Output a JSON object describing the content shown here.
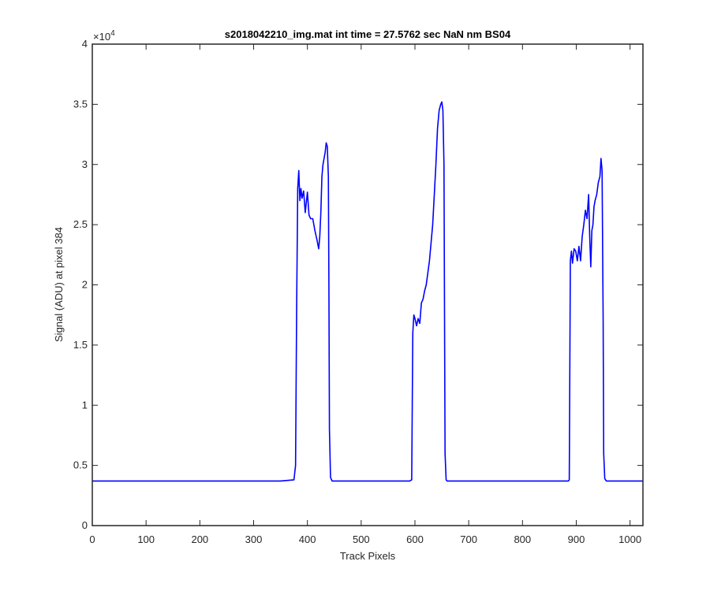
{
  "chart_data": {
    "type": "line",
    "title": "s2018042210_img.mat int time = 27.5762 sec  NaN nm BS04",
    "xlabel": "Track Pixels",
    "ylabel": "Signal (ADU) at pixel 384",
    "y_exponent": {
      "base": "×10",
      "power": "4"
    },
    "xlim": [
      0,
      1024
    ],
    "ylim": [
      0,
      4
    ],
    "x_ticks": [
      0,
      100,
      200,
      300,
      400,
      500,
      600,
      700,
      800,
      900,
      1000
    ],
    "x_tick_labels": [
      "0",
      "100",
      "200",
      "300",
      "400",
      "500",
      "600",
      "700",
      "800",
      "900",
      "1000"
    ],
    "y_ticks": [
      0,
      0.5,
      1,
      1.5,
      2,
      2.5,
      3,
      3.5,
      4
    ],
    "y_tick_labels": [
      "0",
      "0.5",
      "1",
      "1.5",
      "2",
      "2.5",
      "3",
      "3.5",
      "4"
    ],
    "grid": false,
    "colors": {
      "line": "#0000ff",
      "axis": "#262626"
    },
    "series": [
      {
        "x": [
          0,
          50,
          100,
          150,
          200,
          250,
          300,
          350,
          375,
          378,
          380,
          382,
          384,
          386,
          388,
          390,
          393,
          396,
          400,
          403,
          406,
          410,
          414,
          418,
          421,
          423,
          425,
          427,
          429,
          431,
          433,
          435,
          437,
          439,
          440,
          441,
          443,
          446,
          450,
          500,
          550,
          590,
          594,
          596,
          598,
          600,
          603,
          606,
          609,
          612,
          615,
          618,
          621,
          624,
          627,
          630,
          633,
          636,
          639,
          642,
          645,
          648,
          650,
          652,
          654,
          655,
          656,
          658,
          660,
          700,
          750,
          800,
          850,
          885,
          887,
          889,
          891,
          893,
          896,
          899,
          902,
          905,
          908,
          911,
          914,
          917,
          920,
          923,
          925,
          927,
          929,
          931,
          933,
          935,
          938,
          941,
          944,
          946,
          948,
          950,
          951,
          953,
          956,
          960,
          1000,
          1024
        ],
        "y": [
          0.37,
          0.37,
          0.37,
          0.37,
          0.37,
          0.37,
          0.37,
          0.37,
          0.38,
          0.5,
          1.8,
          2.8,
          2.95,
          2.7,
          2.8,
          2.72,
          2.78,
          2.6,
          2.77,
          2.58,
          2.55,
          2.55,
          2.45,
          2.37,
          2.3,
          2.4,
          2.6,
          2.9,
          3.0,
          3.05,
          3.1,
          3.18,
          3.15,
          2.9,
          2.0,
          0.8,
          0.4,
          0.37,
          0.37,
          0.37,
          0.37,
          0.37,
          0.38,
          1.6,
          1.75,
          1.72,
          1.66,
          1.72,
          1.68,
          1.85,
          1.88,
          1.95,
          2.0,
          2.1,
          2.2,
          2.35,
          2.5,
          2.75,
          3.0,
          3.3,
          3.45,
          3.5,
          3.52,
          3.45,
          3.0,
          1.8,
          0.6,
          0.38,
          0.37,
          0.37,
          0.37,
          0.37,
          0.37,
          0.37,
          0.38,
          2.2,
          2.28,
          2.18,
          2.3,
          2.28,
          2.2,
          2.32,
          2.2,
          2.4,
          2.5,
          2.62,
          2.55,
          2.75,
          2.4,
          2.15,
          2.45,
          2.5,
          2.65,
          2.7,
          2.75,
          2.85,
          2.9,
          3.05,
          2.95,
          1.7,
          0.6,
          0.39,
          0.37,
          0.37,
          0.37,
          0.37
        ]
      }
    ]
  }
}
